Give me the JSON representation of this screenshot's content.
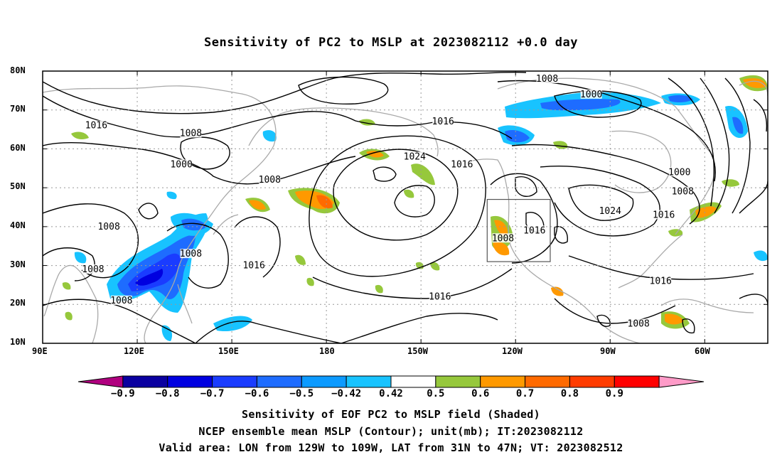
{
  "title": "Sensitivity of PC2 to MSLP at 2023082112 +0.0 day",
  "map": {
    "lon_labels": [
      "90E",
      "120E",
      "150E",
      "180",
      "150W",
      "120W",
      "90W",
      "60W"
    ],
    "lat_labels": [
      "80N",
      "70N",
      "60N",
      "50N",
      "40N",
      "30N",
      "20N",
      "10N"
    ],
    "lon_range_deg_east": [
      90,
      320
    ],
    "lat_range_deg": [
      10,
      80
    ],
    "grid": "dotted",
    "valid_box": {
      "lon_from": "129W",
      "lon_to": "109W",
      "lat_from": "31N",
      "lat_to": "47N"
    },
    "contour_labels": [
      {
        "text": "1008",
        "lon": -110,
        "lat": 78
      },
      {
        "text": "1000",
        "lon": -96,
        "lat": 74
      },
      {
        "text": "1016",
        "lon": 107,
        "lat": 66
      },
      {
        "text": "1008",
        "lon": 137,
        "lat": 64
      },
      {
        "text": "1016",
        "lon": -143,
        "lat": 67
      },
      {
        "text": "1024",
        "lon": -152,
        "lat": 58
      },
      {
        "text": "1016",
        "lon": -137,
        "lat": 56
      },
      {
        "text": "1000",
        "lon": 134,
        "lat": 56
      },
      {
        "text": "1008",
        "lon": 162,
        "lat": 52
      },
      {
        "text": "1000",
        "lon": -68,
        "lat": 54
      },
      {
        "text": "1008",
        "lon": -67,
        "lat": 49
      },
      {
        "text": "1016",
        "lon": -73,
        "lat": 43
      },
      {
        "text": "1024",
        "lon": -90,
        "lat": 44
      },
      {
        "text": "1016",
        "lon": -114,
        "lat": 39
      },
      {
        "text": "1008",
        "lon": -124,
        "lat": 37
      },
      {
        "text": "1008",
        "lon": 111,
        "lat": 40
      },
      {
        "text": "1008",
        "lon": 137,
        "lat": 33
      },
      {
        "text": "1016",
        "lon": 157,
        "lat": 30
      },
      {
        "text": "1008",
        "lon": 106,
        "lat": 29
      },
      {
        "text": "1008",
        "lon": 115,
        "lat": 21
      },
      {
        "text": "1016",
        "lon": -144,
        "lat": 22
      },
      {
        "text": "1016",
        "lon": -74,
        "lat": 26
      },
      {
        "text": "1008",
        "lon": -81,
        "lat": 15
      }
    ]
  },
  "colorbar": {
    "labels": [
      "-0.9",
      "-0.8",
      "-0.7",
      "-0.6",
      "-0.5",
      "-0.42",
      "0.42",
      "0.5",
      "0.6",
      "0.7",
      "0.8",
      "0.9"
    ],
    "colors": [
      "#b0007f",
      "#0a00a0",
      "#0000e0",
      "#1a3cff",
      "#1e6cff",
      "#0c9aff",
      "#18c3ff",
      "#ffffff",
      "#96c83c",
      "#ff9900",
      "#ff6a00",
      "#ff3c00",
      "#ff0000",
      "#ff9bc8"
    ]
  },
  "captions": [
    "Sensitivity of EOF PC2 to MSLP field (Shaded)",
    "NCEP ensemble mean MSLP (Contour); unit(mb); IT:2023082112",
    "Valid area: LON from 129W to 109W, LAT from 31N to 47N; VT: 2023082512"
  ]
}
